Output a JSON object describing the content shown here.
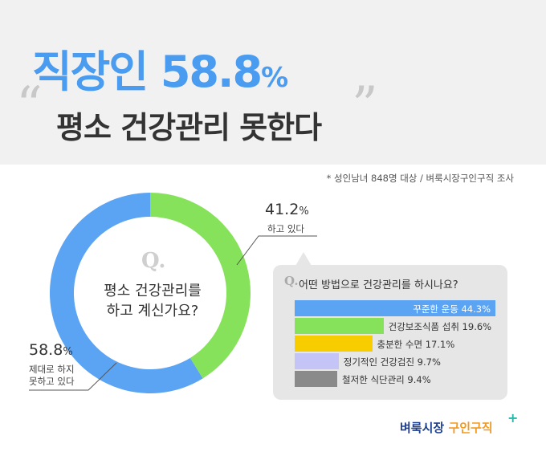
{
  "header": {
    "title_main": "직장인 58.8",
    "title_main_pct": "%",
    "open_quote": "“",
    "close_quote": "”",
    "title_sub": "평소 건강관리 못한다"
  },
  "source": "* 성인남녀 848명 대상 / 벼룩시장구인구직 조사",
  "donut": {
    "q_mark": "Q.",
    "question_line1": "평소 건강관리를",
    "question_line2": "하고 계신가요?",
    "colors": {
      "no": "#5ba4f4",
      "yes": "#86e25a"
    },
    "yes_value": "41.2",
    "yes_pct": "%",
    "yes_label": "하고 있다",
    "no_value": "58.8",
    "no_pct": "%",
    "no_label_line1": "제대로 하지",
    "no_label_line2": "못하고 있다"
  },
  "panel": {
    "q_mark": "Q.",
    "title": "어떤 방법으로 건강관리를 하시나요?"
  },
  "chart_data": [
    {
      "type": "pie",
      "categories": [
        "하고 있다",
        "제대로 하지 못하고 있다"
      ],
      "values": [
        41.2,
        58.8
      ]
    },
    {
      "type": "bar",
      "categories": [
        "꾸준한 운동",
        "건강보조식품 섭취",
        "충분한 수면",
        "정기적인 건강검진",
        "철저한 식단관리"
      ],
      "values": [
        44.3,
        19.6,
        17.1,
        9.7,
        9.4
      ],
      "labels": [
        "꾸준한 운동  44.3%",
        "건강보조식품 섭취  19.6%",
        "충분한 수면  17.1%",
        "정기적인 건강검진  9.7%",
        "철저한 식단관리  9.4%"
      ],
      "colors": [
        "#5ba4f4",
        "#86e25a",
        "#f8cd00",
        "#c4c4f6",
        "#8a8a8a"
      ]
    }
  ],
  "logo": {
    "part1": "벼룩시장",
    "part2": "구인구직",
    "plus": "+"
  }
}
